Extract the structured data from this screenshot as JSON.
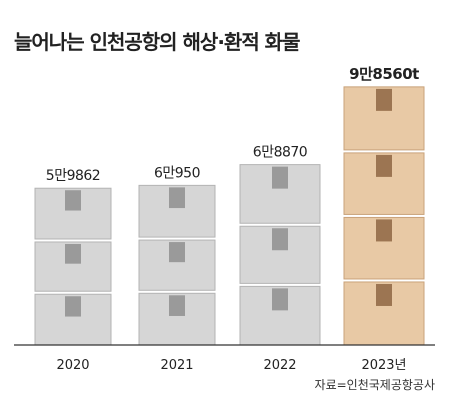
{
  "title": "늘어나는 인천공항의 해상·환적 화물",
  "source": "자료=인천국제공항공사",
  "chart_data": {
    "type": "bar",
    "title": "늘어나는 인천공항의 해상·환적 화물",
    "categories": [
      "2020",
      "2021",
      "2022",
      "2023년"
    ],
    "values": [
      59862,
      60950,
      68870,
      98560
    ],
    "value_labels": [
      "5만9862",
      "6만950",
      "6만8870",
      "9만8560t"
    ],
    "highlight_index": 3,
    "ylim": [
      0,
      105000
    ],
    "grid": false,
    "legend": "none",
    "colors": {
      "box_gray": "#d6d6d6",
      "box_gray_edge": "#b3b3b3",
      "tape_gray": "#9a9a9a",
      "box_tan": "#e8c9a5",
      "box_tan_edge": "#c9a27a",
      "tape_tan": "#9c7552",
      "axis": "#333333",
      "text": "#222222"
    }
  }
}
